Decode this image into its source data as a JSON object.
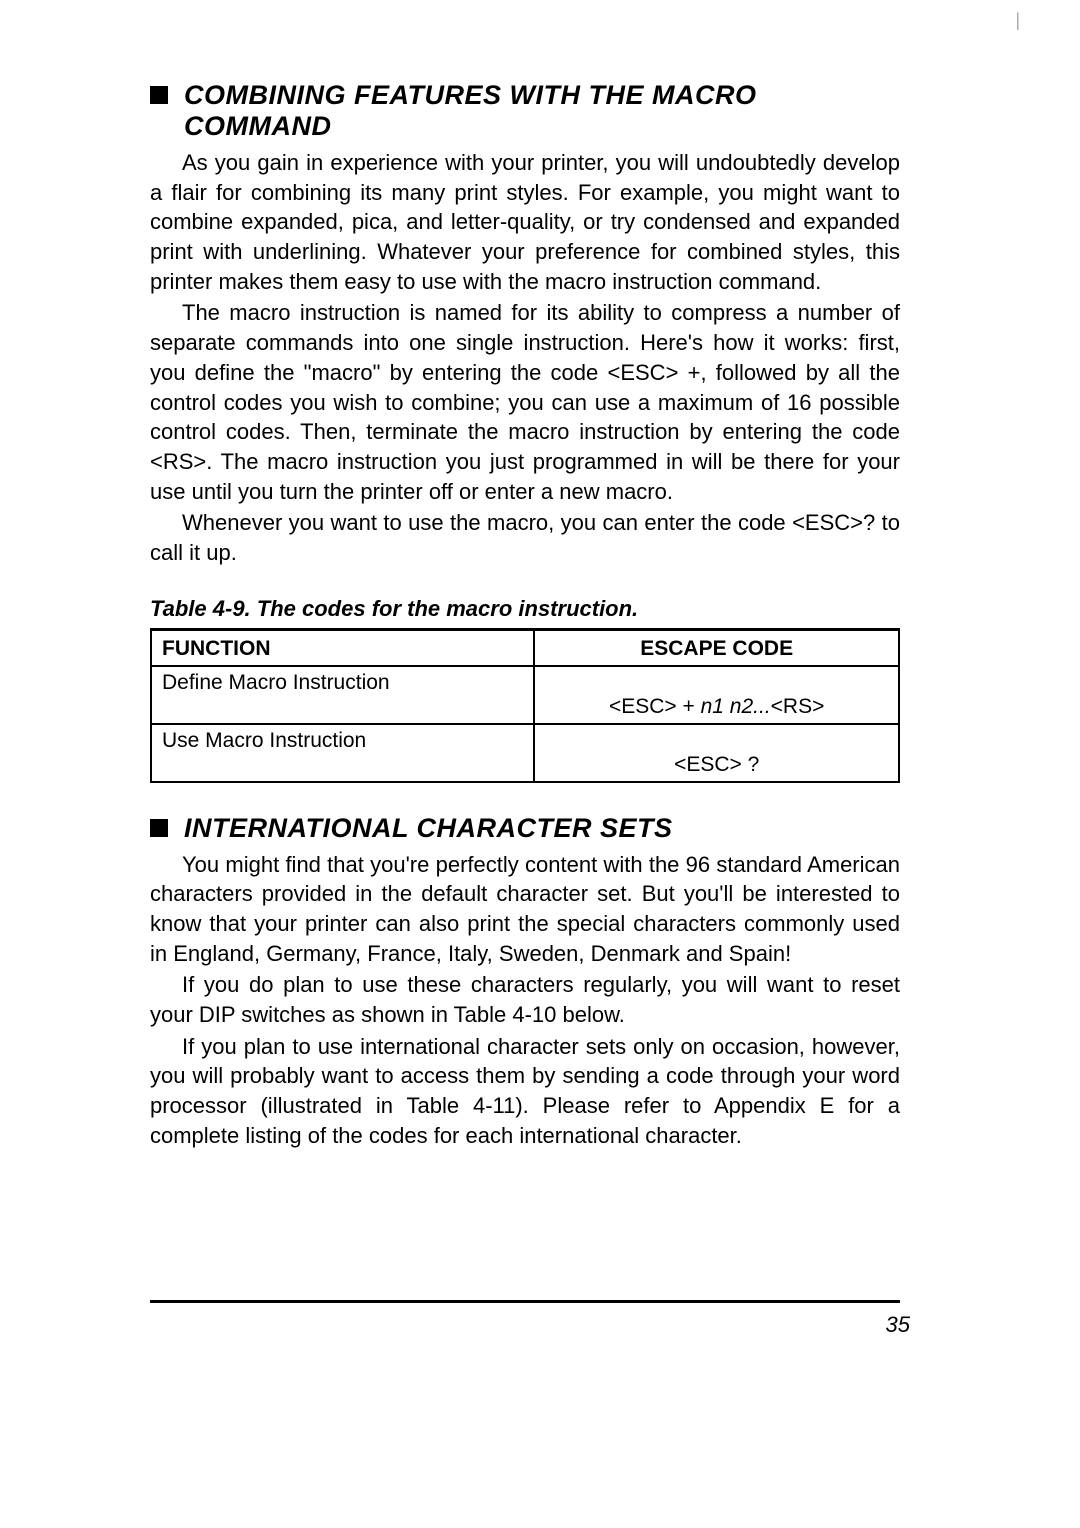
{
  "section1": {
    "heading": "COMBINING FEATURES WITH THE MACRO COMMAND",
    "para1": "As you gain in experience with your printer, you will undoubtedly develop a flair for combining its many print styles. For example, you might want to combine expanded, pica, and letter-quality, or try condensed and expanded print with underlining. Whatever your preference for combined styles, this printer makes them easy to use with the macro instruction command.",
    "para2_a": "The macro instruction is named for its ability to compress a number of separate commands into one single instruction. Here's how it works: first, you define the \"macro\" by entering the code <ESC> +, followed by all the control codes you wish to combine; you can use a maximum of 16 possible control codes. Then, terminate the macro instruction by entering the code <RS>. The macro instruction you just programmed in will be there for your use until you turn the printer off or enter a new macro.",
    "para3": "Whenever you want to use the macro, you can enter the code <ESC>? to call it up."
  },
  "table": {
    "caption": "Table 4-9. The codes for the macro instruction.",
    "header1": "FUNCTION",
    "header2": "ESCAPE CODE",
    "row1_func": "Define Macro Instruction",
    "row1_code_prefix": "<ESC> + ",
    "row1_code_mid": "n1 n2...",
    "row1_code_suffix": "<RS>",
    "row2_func": "Use Macro Instruction",
    "row2_code": "<ESC> ?"
  },
  "section2": {
    "heading": "INTERNATIONAL CHARACTER SETS",
    "para1": "You might find that you're perfectly content with the 96 standard American characters provided in the default character set. But you'll be interested to know that your printer can also print the special characters commonly used in England, Germany, France, Italy, Sweden, Denmark and Spain!",
    "para2": "If you do plan to use these characters regularly, you will want to reset your DIP switches as shown in Table 4-10 below.",
    "para3": "If you plan to use international character sets only on occasion, however, you will probably want to access them by sending a code through your word processor (illustrated in Table 4-11). Please refer to Appendix E for a complete listing of the codes for each international character."
  },
  "page_number": "35"
}
